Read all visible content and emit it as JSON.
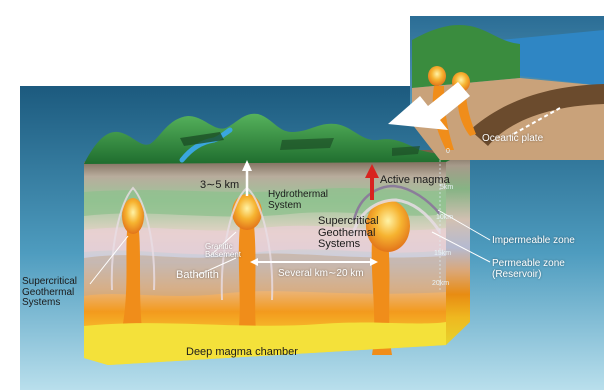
{
  "labels": {
    "scale_3_5km": "3∼5 km",
    "hydrothermal_system": "Hydrothermal\nSystem",
    "active_magma": "Active magma",
    "supercritical_right": "Supercritical\nGeothermal\nSystems",
    "supercritical_left": "Supercritical\nGeothermal\nSystems",
    "granitic_basement": "Granitic\nBasement",
    "batholith": "Batholith",
    "several_km": "Several km∼20 km",
    "deep_magma_chamber": "Deep magma chamber",
    "impermeable_zone": "Impermeable zone",
    "permeable_zone": "Permeable zone\n(Reservoir)",
    "oceanic_plate": "Oceanic plate"
  },
  "depth_ticks": [
    "0",
    "5km",
    "10km",
    "15km",
    "20km"
  ],
  "colors": {
    "background_panel_top": "#1f5f83",
    "background_panel_bottom": "#b5dcea",
    "vegetation": "#2f8a3c",
    "magma": "#f39a1d",
    "deep_magma": "#f2dc2a",
    "active_magma_arrow": "#d8231f"
  }
}
